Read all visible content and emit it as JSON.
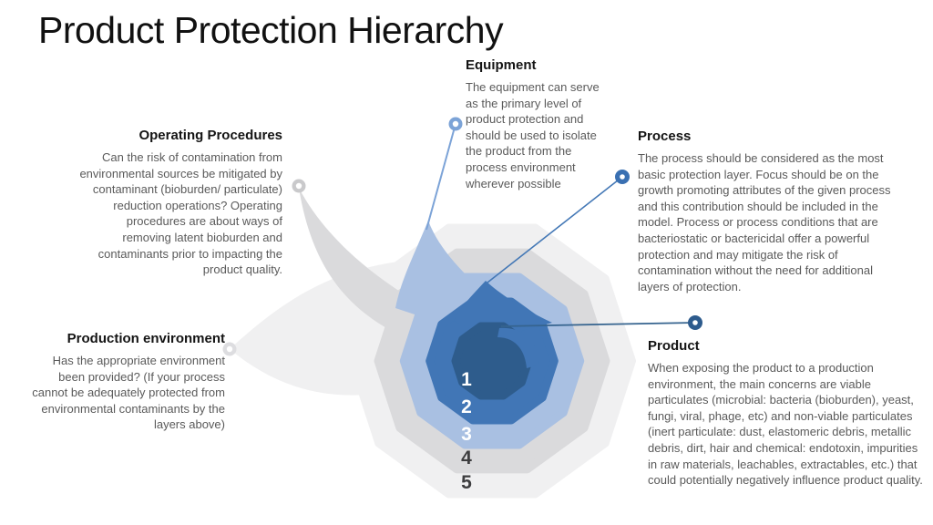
{
  "slide": {
    "title": "Product Protection Hierarchy",
    "background": "#ffffff"
  },
  "callouts": {
    "equipment": {
      "heading": "Equipment",
      "body": "The equipment can serve as the primary level of product protection and should be used to isolate the product from the process environment wherever possible"
    },
    "process": {
      "heading": "Process",
      "body": "The process should be considered as the most basic protection layer. Focus should be on the growth promoting attributes of the given process and this contribution should be included in the model. Process or process conditions that are bacteriostatic or bactericidal offer a powerful protection and may mitigate the risk of contamination without the need for additional layers of protection."
    },
    "product": {
      "heading": "Product",
      "body": "When exposing the product to a production environment, the main concerns are viable particulates (microbial: bacteria (bioburden), yeast, fungi, viral, phage, etc) and non-viable particulates (inert particulate: dust, elastomeric debris, metallic debris, dirt, hair and chemical: endotoxin, impurities in raw materials, leachables, extractables, etc.) that could potentially negatively influence product quality."
    },
    "operating_procedures": {
      "heading": "Operating Procedures",
      "body": "Can the risk of contamination from environmental sources be mitigated by contaminant (bioburden/ particulate) reduction operations? Operating procedures are about ways of removing latent bioburden and contaminants prior to impacting the product quality."
    },
    "production_environment": {
      "heading": "Production environment",
      "body": "Has the appropriate environment been provided? (If your process cannot be adequately protected from environmental contaminants by the layers above)"
    }
  },
  "diagram": {
    "type": "nested-spiral-hierarchy",
    "levels": [
      {
        "number": "1",
        "callout": "Product",
        "color": "#2e5c8c",
        "number_color": "#ffffff"
      },
      {
        "number": "2",
        "callout": "Process",
        "color": "#4176b6",
        "number_color": "#ffffff"
      },
      {
        "number": "3",
        "callout": "Equipment",
        "color": "#a9c0e2",
        "number_color": "#ffffff"
      },
      {
        "number": "4",
        "callout": "Operating Procedures",
        "color": "#dadadc",
        "number_color": "#3d3d3f"
      },
      {
        "number": "5",
        "callout": "Production environment",
        "color": "#f0f0f1",
        "number_color": "#3d3d3f"
      }
    ],
    "connectors": {
      "equipment": {
        "line": "#7ca3d7",
        "marker": "#7ca3d7"
      },
      "process": {
        "line": "#4478b6",
        "marker": "#3a70b2"
      },
      "product": {
        "line": "#36648f",
        "marker": "#2d5b8d"
      },
      "operating_procedures": {
        "marker": "#c9c9cb"
      },
      "production_environment": {
        "marker": "#dddde0"
      }
    }
  }
}
